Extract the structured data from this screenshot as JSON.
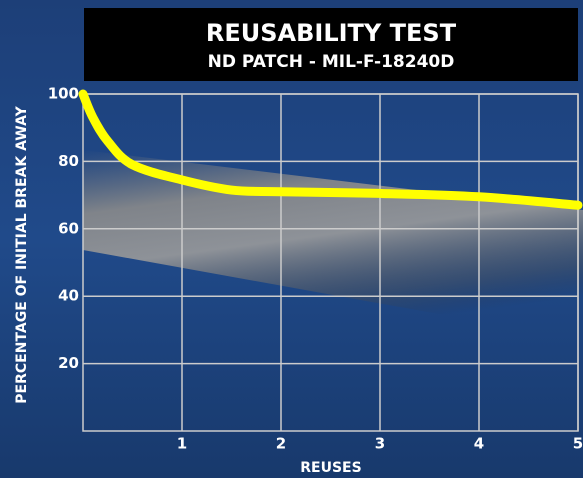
{
  "chart_data": {
    "type": "line",
    "title": "REUSABILITY TEST",
    "subtitle": "ND PATCH - MIL-F-18240D",
    "x_label": "REUSES",
    "y_label": "PERCENTAGE OF INITIAL BREAK AWAY",
    "x": [
      0,
      0.1,
      0.25,
      0.5,
      1,
      1.5,
      2,
      3,
      4,
      5
    ],
    "series": [
      {
        "name": "ND Patch",
        "color": "#ffff00",
        "values": [
          100,
          93,
          86,
          79,
          74.5,
          71.5,
          71,
          70.5,
          69.5,
          67
        ]
      }
    ],
    "xlim": [
      0,
      5
    ],
    "xticks": [
      1,
      2,
      3,
      4,
      5
    ],
    "ylim": [
      0,
      100
    ],
    "yticks": [
      20,
      40,
      60,
      80,
      100
    ],
    "grid": true
  }
}
